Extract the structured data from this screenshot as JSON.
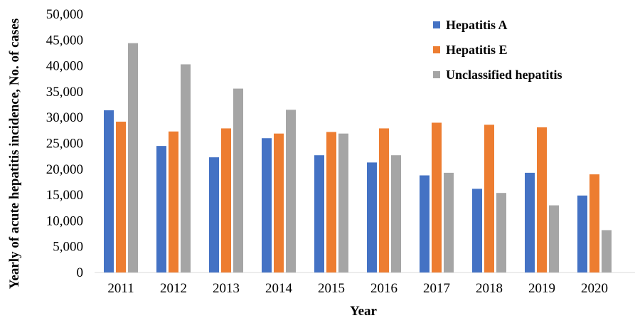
{
  "chart_data": {
    "type": "bar",
    "title": "",
    "xlabel": "Year",
    "ylabel": "Yearly of acute hepatitis incidence, No. of cases",
    "categories": [
      "2011",
      "2012",
      "2013",
      "2014",
      "2015",
      "2016",
      "2017",
      "2018",
      "2019",
      "2020"
    ],
    "ylim": [
      0,
      50000
    ],
    "yticks": [
      0,
      5000,
      10000,
      15000,
      20000,
      25000,
      30000,
      35000,
      40000,
      45000,
      50000
    ],
    "ytick_labels": [
      "0",
      "5,000",
      "10,000",
      "15,000",
      "20,000",
      "25,000",
      "30,000",
      "35,000",
      "40,000",
      "45,000",
      "50,000"
    ],
    "grid": false,
    "legend_position": "top-right",
    "series": [
      {
        "name": "Hepatitis A",
        "color": "#4472c4",
        "values": [
          31400,
          24500,
          22300,
          26000,
          22700,
          21300,
          18800,
          16200,
          19300,
          14900
        ]
      },
      {
        "name": "Hepatitis E",
        "color": "#ed7d31",
        "values": [
          29200,
          27300,
          27900,
          26900,
          27200,
          27900,
          29000,
          28600,
          28100,
          19000
        ]
      },
      {
        "name": "Unclassified hepatitis",
        "color": "#a5a5a5",
        "values": [
          44400,
          40300,
          35600,
          31500,
          26900,
          22700,
          19300,
          15400,
          13000,
          8200
        ]
      }
    ]
  }
}
